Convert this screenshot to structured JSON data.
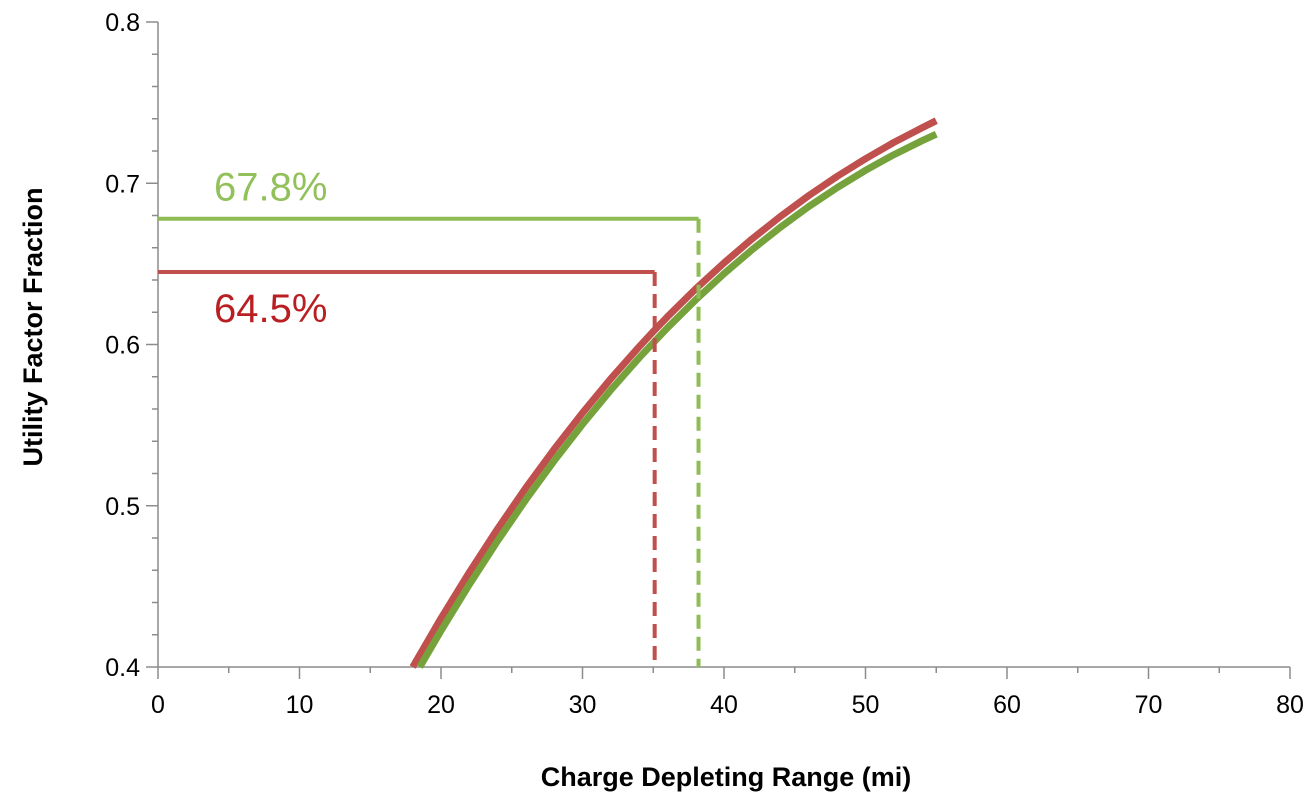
{
  "chart_data": {
    "type": "line",
    "title": "",
    "xlabel": "Charge Depleting Range (mi)",
    "ylabel": "Utility Factor Fraction",
    "xlim": [
      0,
      80
    ],
    "ylim": [
      0.4,
      0.8
    ],
    "x_ticks": [
      "0",
      "10",
      "20",
      "30",
      "40",
      "50",
      "60",
      "70",
      "80"
    ],
    "y_ticks": [
      "0.4",
      "0.5",
      "0.6",
      "0.7",
      "0.8"
    ],
    "grid": false,
    "legend": "none",
    "series": [
      {
        "color": "#c0504d",
        "x": [
          18,
          20,
          22,
          24,
          26,
          28,
          30,
          32,
          34,
          35,
          36,
          38,
          40,
          42,
          44,
          46,
          48,
          50,
          52,
          54,
          55
        ],
        "y": [
          0.4,
          0.4302,
          0.4587,
          0.4857,
          0.5112,
          0.5351,
          0.5576,
          0.5788,
          0.5986,
          0.6081,
          0.6172,
          0.6345,
          0.6506,
          0.6656,
          0.6795,
          0.6924,
          0.7043,
          0.7152,
          0.7253,
          0.7344,
          0.7388
        ]
      },
      {
        "color": "#76a23c",
        "x": [
          18.5,
          20,
          22,
          24,
          26,
          28,
          30,
          32,
          34,
          36,
          38,
          40,
          42,
          44,
          46,
          48,
          50,
          52,
          54,
          55
        ],
        "y": [
          0.4,
          0.4225,
          0.4511,
          0.4782,
          0.5038,
          0.5279,
          0.5505,
          0.5718,
          0.5917,
          0.6103,
          0.6277,
          0.6439,
          0.6589,
          0.6728,
          0.6856,
          0.6973,
          0.708,
          0.7177,
          0.7264,
          0.7304
        ]
      }
    ],
    "annotations": [
      {
        "label": "67.8%",
        "x": 38.2,
        "y": 0.678,
        "color": "#92c05a",
        "line_color": "#8fbc55"
      },
      {
        "label": "64.5%",
        "x": 35.1,
        "y": 0.645,
        "color": "#b81e22",
        "line_color": "#c0504d"
      }
    ]
  }
}
